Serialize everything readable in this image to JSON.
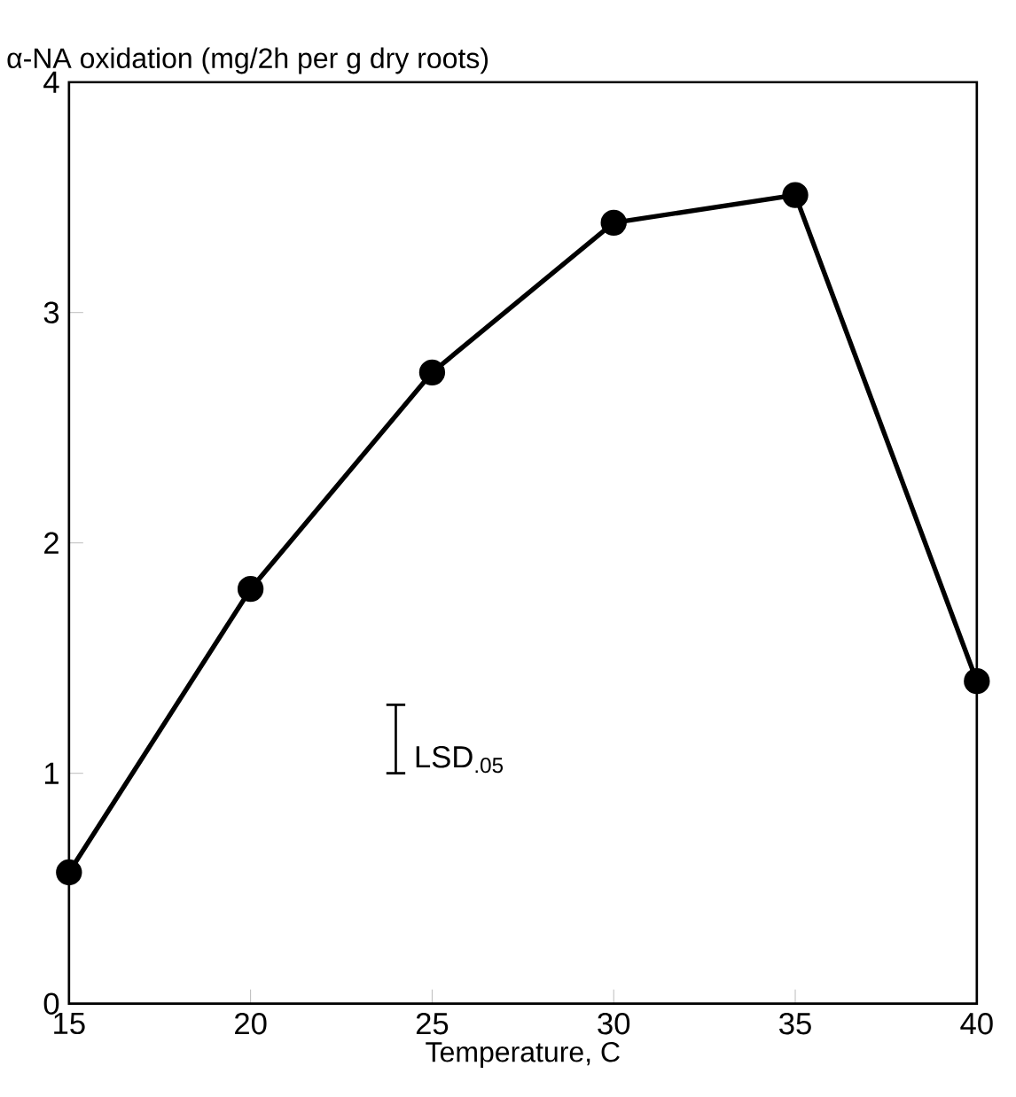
{
  "chart_data": {
    "type": "line",
    "ylabel": "α-NA oxidation (mg/2h per g dry roots)",
    "xlabel": "Temperature, C",
    "x": [
      15,
      20,
      25,
      30,
      35,
      40
    ],
    "series": [
      {
        "color": "#000000",
        "values": [
          0.57,
          1.8,
          2.74,
          3.39,
          3.51,
          1.4
        ]
      }
    ],
    "xlim": [
      15,
      40
    ],
    "xticks": [
      15,
      20,
      25,
      30,
      35,
      40
    ],
    "ylim": [
      0,
      4
    ],
    "yticks": [
      0,
      1,
      2,
      3,
      4
    ],
    "grid": false,
    "marker": "circle",
    "line_style": "solid",
    "annotations": [
      "LSD$_{.05}$"
    ]
  }
}
